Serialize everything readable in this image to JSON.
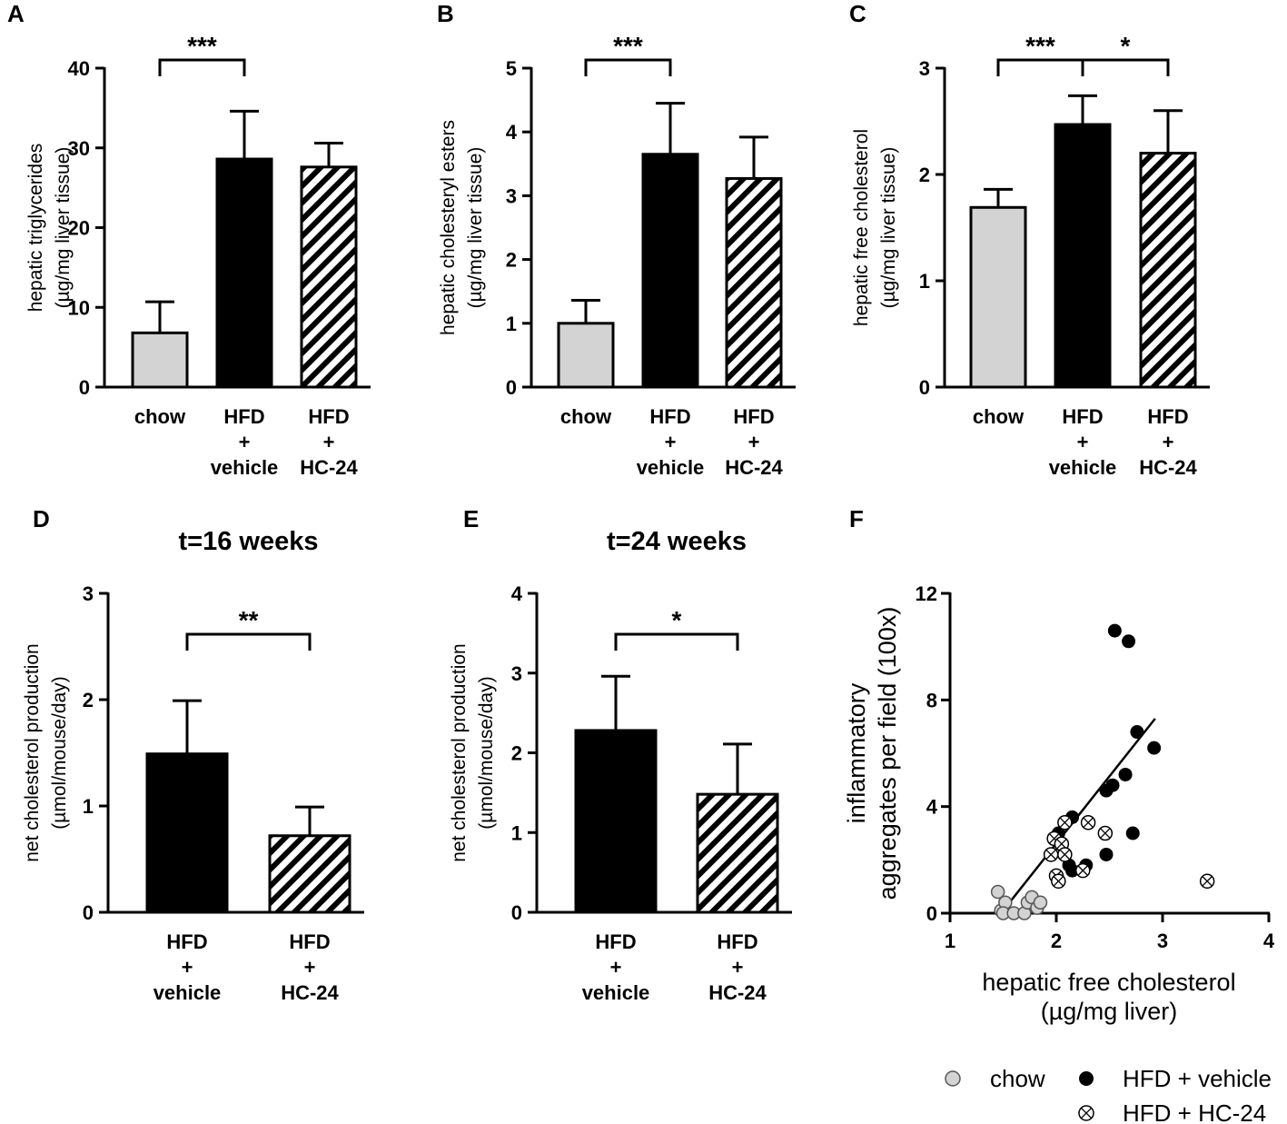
{
  "colors": {
    "chow": "#d3d3d3",
    "vehicle": "#000000",
    "hc24": "hatch"
  },
  "chart_data": [
    {
      "panel": "A",
      "type": "bar",
      "categories": [
        [
          "chow"
        ],
        [
          "HFD",
          "+",
          "vehicle"
        ],
        [
          "HFD",
          "+",
          "HC-24"
        ]
      ],
      "values": [
        6.8,
        28.6,
        27.6
      ],
      "errors": [
        3.9,
        6.0,
        3.0
      ],
      "fills": [
        "chow",
        "vehicle",
        "hc24"
      ],
      "ylim": [
        0,
        40
      ],
      "yticks": [
        0,
        10,
        20,
        30,
        40
      ],
      "ylabel": [
        "hepatic triglycerides",
        "(µg/mg liver tissue)"
      ],
      "significance": [
        {
          "from": 0,
          "to": 1,
          "label": "***"
        }
      ]
    },
    {
      "panel": "B",
      "type": "bar",
      "categories": [
        [
          "chow"
        ],
        [
          "HFD",
          "+",
          "vehicle"
        ],
        [
          "HFD",
          "+",
          "HC-24"
        ]
      ],
      "values": [
        1.0,
        3.65,
        3.27
      ],
      "errors": [
        0.36,
        0.8,
        0.65
      ],
      "fills": [
        "chow",
        "vehicle",
        "hc24"
      ],
      "ylim": [
        0,
        5
      ],
      "yticks": [
        0,
        1,
        2,
        3,
        4,
        5
      ],
      "ylabel": [
        "hepatic cholesteryl esters",
        "(µg/mg liver tissue)"
      ],
      "significance": [
        {
          "from": 0,
          "to": 1,
          "label": "***"
        }
      ]
    },
    {
      "panel": "C",
      "type": "bar",
      "categories": [
        [
          "chow"
        ],
        [
          "HFD",
          "+",
          "vehicle"
        ],
        [
          "HFD",
          "+",
          "HC-24"
        ]
      ],
      "values": [
        1.69,
        2.47,
        2.2
      ],
      "errors": [
        0.17,
        0.27,
        0.4
      ],
      "fills": [
        "chow",
        "vehicle",
        "hc24"
      ],
      "ylim": [
        0,
        3
      ],
      "yticks": [
        0,
        1,
        2,
        3
      ],
      "ylabel": [
        "hepatic free cholesterol",
        "(µg/mg liver tissue)"
      ],
      "significance": [
        {
          "from": 0,
          "to": 1,
          "label": "***"
        },
        {
          "from": 1,
          "to": 2,
          "label": "*"
        }
      ]
    },
    {
      "panel": "D",
      "type": "bar",
      "title": "t=16 weeks",
      "categories": [
        [
          "HFD",
          "+",
          "vehicle"
        ],
        [
          "HFD",
          "+",
          "HC-24"
        ]
      ],
      "values": [
        1.49,
        0.72
      ],
      "errors": [
        0.5,
        0.27
      ],
      "fills": [
        "vehicle",
        "hc24"
      ],
      "ylim": [
        0,
        3
      ],
      "yticks": [
        0,
        1,
        2,
        3
      ],
      "ylabel": [
        "net cholesterol production",
        "(µmol/mouse/day)"
      ],
      "significance": [
        {
          "from": 0,
          "to": 1,
          "label": "**"
        }
      ]
    },
    {
      "panel": "E",
      "type": "bar",
      "title": "t=24 weeks",
      "categories": [
        [
          "HFD",
          "+",
          "vehicle"
        ],
        [
          "HFD",
          "+",
          "HC-24"
        ]
      ],
      "values": [
        2.28,
        1.48
      ],
      "errors": [
        0.68,
        0.63
      ],
      "fills": [
        "vehicle",
        "hc24"
      ],
      "ylim": [
        0,
        4
      ],
      "yticks": [
        0,
        1,
        2,
        3,
        4
      ],
      "ylabel": [
        "net cholesterol production",
        "(µmol/mouse/day)"
      ],
      "significance": [
        {
          "from": 0,
          "to": 1,
          "label": "*"
        }
      ]
    },
    {
      "panel": "F",
      "type": "scatter",
      "xlabel": [
        "hepatic free cholesterol",
        "(µg/mg liver)"
      ],
      "ylabel": [
        "inflammatory",
        "aggregates per field (100x)"
      ],
      "xlim": [
        1,
        4
      ],
      "ylim": [
        0,
        12
      ],
      "xticks": [
        1,
        2,
        3,
        4
      ],
      "yticks": [
        0,
        4,
        8,
        12
      ],
      "fit_line": {
        "x": [
          1.5,
          2.93
        ],
        "y": [
          0.1,
          7.3
        ]
      },
      "series": [
        {
          "name": "chow",
          "marker": "gray",
          "points": [
            [
              1.45,
              0.8
            ],
            [
              1.48,
              0.1
            ],
            [
              1.52,
              0.4
            ],
            [
              1.5,
              0.0
            ],
            [
              1.6,
              0.0
            ],
            [
              1.7,
              0.0
            ],
            [
              1.73,
              0.4
            ],
            [
              1.77,
              0.6
            ],
            [
              1.82,
              0.2
            ],
            [
              1.85,
              0.4
            ]
          ]
        },
        {
          "name": "HFD + vehicle",
          "marker": "black",
          "points": [
            [
              2.55,
              10.6
            ],
            [
              2.68,
              10.2
            ],
            [
              2.76,
              6.8
            ],
            [
              2.92,
              6.2
            ],
            [
              2.65,
              5.2
            ],
            [
              2.53,
              4.8
            ],
            [
              2.47,
              4.6
            ],
            [
              2.02,
              3.0
            ],
            [
              2.15,
              3.6
            ],
            [
              2.72,
              3.0
            ],
            [
              2.47,
              2.2
            ],
            [
              2.12,
              1.8
            ],
            [
              2.15,
              1.6
            ],
            [
              2.28,
              1.8
            ]
          ]
        },
        {
          "name": "HFD + HC-24",
          "marker": "xcircle",
          "points": [
            [
              1.98,
              2.8
            ],
            [
              2.05,
              2.6
            ],
            [
              2.08,
              3.4
            ],
            [
              2.3,
              3.4
            ],
            [
              2.46,
              3.0
            ],
            [
              1.95,
              2.2
            ],
            [
              2.08,
              2.2
            ],
            [
              2.0,
              1.4
            ],
            [
              2.02,
              1.2
            ],
            [
              2.25,
              1.6
            ],
            [
              3.42,
              1.2
            ]
          ]
        }
      ]
    }
  ]
}
